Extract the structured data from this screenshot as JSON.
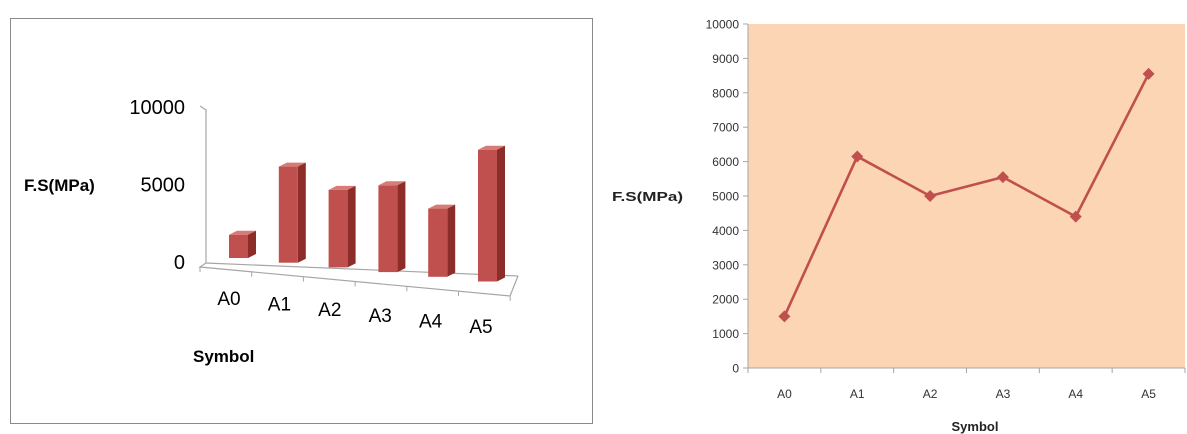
{
  "colors": {
    "bar_front": "#c0504d",
    "bar_side": "#8c2d2a",
    "bar_top": "#d77b78",
    "line": "#c0504d",
    "plot_bg": "#fcd5b5",
    "axis": "#a6a6a6"
  },
  "chart_data": [
    {
      "type": "bar",
      "style": "3d-column",
      "categories": [
        "A0",
        "A1",
        "A2",
        "A3",
        "A4",
        "A5"
      ],
      "values": [
        1500,
        6200,
        5000,
        5600,
        4400,
        8500
      ],
      "xlabel": "Symbol",
      "ylabel": "F.S(MPa)",
      "ylim": [
        0,
        10000
      ],
      "yticks": [
        "0",
        "5000",
        "10000"
      ],
      "grid": false,
      "legend": "none"
    },
    {
      "type": "line",
      "marker": "diamond",
      "categories": [
        "A0",
        "A1",
        "A2",
        "A3",
        "A4",
        "A5"
      ],
      "values": [
        1500,
        6150,
        5000,
        5550,
        4400,
        8550
      ],
      "xlabel": "Symbol",
      "ylabel": "F.S(MPa)",
      "ylim": [
        0,
        10000
      ],
      "yticks": [
        "0",
        "1000",
        "2000",
        "3000",
        "4000",
        "5000",
        "6000",
        "7000",
        "8000",
        "9000",
        "10000"
      ],
      "grid": false,
      "legend": "none"
    }
  ]
}
